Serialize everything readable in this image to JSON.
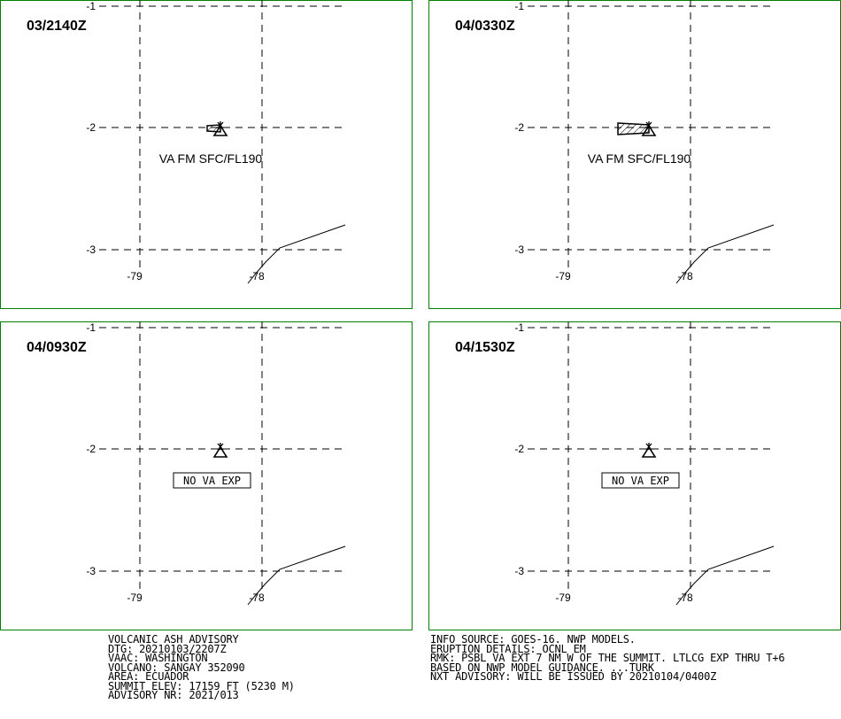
{
  "panels": [
    {
      "time": "03/2140Z",
      "label": "VA FM SFC/FL190",
      "label_type": "text",
      "ash": "small"
    },
    {
      "time": "04/0330Z",
      "label": "VA FM SFC/FL190",
      "label_type": "text",
      "ash": "large"
    },
    {
      "time": "04/0930Z",
      "label": "NO VA EXP",
      "label_type": "box",
      "ash": "none"
    },
    {
      "time": "04/1530Z",
      "label": "NO VA EXP",
      "label_type": "box",
      "ash": "none"
    }
  ],
  "axes": {
    "lat_labels": [
      "-1",
      "-2",
      "-3"
    ],
    "lon_labels": [
      "-79",
      "-78"
    ]
  },
  "colors": {
    "frame": "#008000",
    "ink": "#000000"
  },
  "icons": {
    "volcano": "volcano-triangle-icon",
    "ash_cloud": "hatched-polygon"
  },
  "advisory_left": [
    "VOLCANIC ASH ADVISORY",
    "DTG: 20210103/2207Z",
    "VAAC: WASHINGTON",
    "VOLCANO: SANGAY 352090",
    "AREA: ECUADOR",
    "SUMMIT ELEV: 17159 FT (5230 M)",
    "ADVISORY NR: 2021/013"
  ],
  "advisory_right": [
    "INFO SOURCE: GOES-16. NWP MODELS.",
    "ERUPTION DETAILS: OCNL EM",
    "RMK: PSBL VA EXT 7 NM W OF THE SUMMIT. LTLCG EXP THRU T+6",
    "BASED ON NWP MODEL GUIDANCE. ...TURK",
    "NXT ADVISORY: WILL BE ISSUED BY 20210104/0400Z"
  ]
}
